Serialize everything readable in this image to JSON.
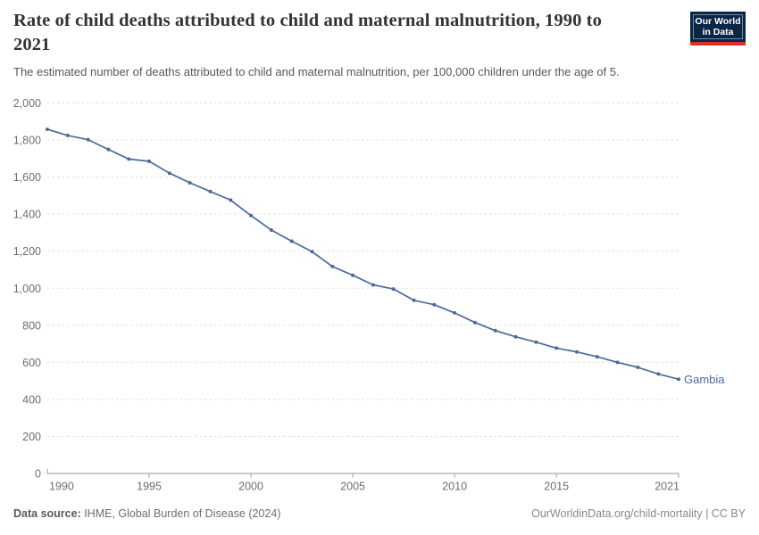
{
  "header": {
    "title": "Rate of child deaths attributed to child and maternal malnutrition, 1990 to 2021",
    "subtitle": "The estimated number of deaths attributed to child and maternal malnutrition, per 100,000 children under the age of 5.",
    "logo": {
      "line1": "Our World",
      "line2": "in Data",
      "bg_color": "#0a2647",
      "stripe_color": "#dc2f27"
    }
  },
  "chart_data": {
    "type": "line",
    "title": "Rate of child deaths attributed to child and maternal malnutrition, 1990 to 2021",
    "xlabel": "",
    "ylabel": "",
    "x": [
      1990,
      1991,
      1992,
      1993,
      1994,
      1995,
      1996,
      1997,
      1998,
      1999,
      2000,
      2001,
      2002,
      2003,
      2004,
      2005,
      2006,
      2007,
      2008,
      2009,
      2010,
      2011,
      2012,
      2013,
      2014,
      2015,
      2016,
      2017,
      2018,
      2019,
      2020,
      2021
    ],
    "series": [
      {
        "name": "Gambia",
        "color": "#4c6a9c",
        "values": [
          1858,
          1825,
          1802,
          1749,
          1697,
          1685,
          1621,
          1569,
          1522,
          1476,
          1392,
          1314,
          1254,
          1197,
          1117,
          1070,
          1018,
          996,
          935,
          911,
          867,
          815,
          771,
          738,
          709,
          677,
          656,
          630,
          600,
          573,
          537,
          509
        ]
      }
    ],
    "xlim": [
      1990,
      2021
    ],
    "ylim": [
      0,
      2000
    ],
    "yticks": [
      0,
      200,
      400,
      600,
      800,
      1000,
      1200,
      1400,
      1600,
      1800,
      2000
    ],
    "xticks": [
      1990,
      1995,
      2000,
      2005,
      2010,
      2015,
      2021
    ],
    "grid": "horizontal-dashed",
    "legend": "end-of-line-label",
    "end_label": "Gambia"
  },
  "footer": {
    "source_label": "Data source:",
    "source_text": " IHME, Global Burden of Disease (2024)",
    "attribution": "OurWorldinData.org/child-mortality | CC BY"
  },
  "theme": {
    "line_color": "#4c6a9c",
    "grid_color": "#e0e0e0",
    "axis_color": "#9a9a9a",
    "tick_text_color": "#6e6e6e",
    "title_color": "#333333",
    "subtitle_color": "#575757"
  }
}
